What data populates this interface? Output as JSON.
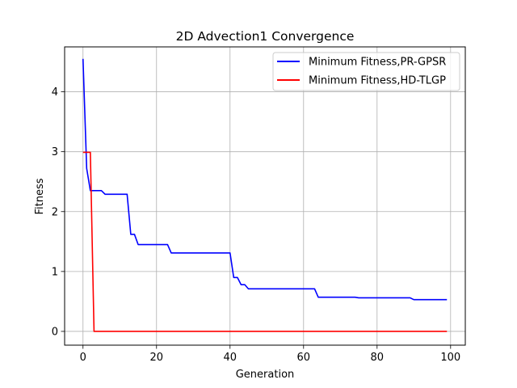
{
  "chart_data": {
    "type": "line",
    "title": "2D Advection1 Convergence",
    "xlabel": "Generation",
    "ylabel": "Fitness",
    "xlim": [
      -5,
      104
    ],
    "ylim": [
      -0.23,
      4.75
    ],
    "xticks": [
      0,
      20,
      40,
      60,
      80,
      100
    ],
    "yticks": [
      0,
      1,
      2,
      3,
      4
    ],
    "grid": true,
    "legend_position": "top-right",
    "series": [
      {
        "name": "Minimum Fitness,PR-GPSR",
        "color": "#0000ff",
        "points": [
          [
            0,
            4.55
          ],
          [
            1,
            2.72
          ],
          [
            2,
            2.35
          ],
          [
            3,
            2.35
          ],
          [
            4,
            2.35
          ],
          [
            5,
            2.35
          ],
          [
            6,
            2.29
          ],
          [
            11,
            2.29
          ],
          [
            12,
            2.29
          ],
          [
            13,
            1.62
          ],
          [
            14,
            1.62
          ],
          [
            15,
            1.45
          ],
          [
            16,
            1.45
          ],
          [
            23,
            1.45
          ],
          [
            24,
            1.31
          ],
          [
            39,
            1.31
          ],
          [
            40,
            1.31
          ],
          [
            41,
            0.9
          ],
          [
            42,
            0.9
          ],
          [
            43,
            0.78
          ],
          [
            44,
            0.78
          ],
          [
            45,
            0.71
          ],
          [
            63,
            0.71
          ],
          [
            64,
            0.57
          ],
          [
            74,
            0.57
          ],
          [
            75,
            0.56
          ],
          [
            89,
            0.56
          ],
          [
            90,
            0.53
          ],
          [
            99,
            0.53
          ]
        ]
      },
      {
        "name": "Minimum Fitness,HD-TLGP",
        "color": "#ff0000",
        "points": [
          [
            0,
            2.99
          ],
          [
            2,
            2.99
          ],
          [
            3,
            0.0
          ],
          [
            99,
            0.0
          ]
        ]
      }
    ]
  }
}
